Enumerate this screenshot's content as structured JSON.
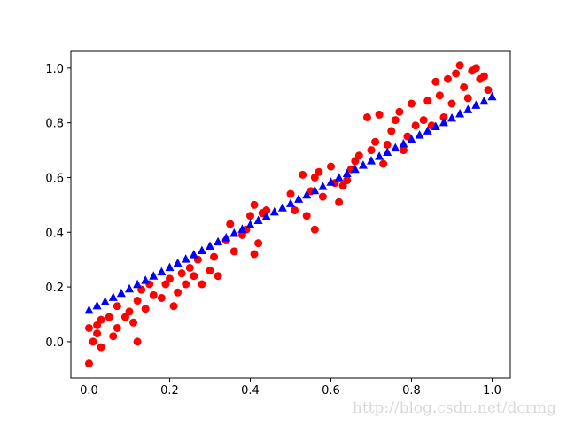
{
  "chart_data": {
    "type": "scatter",
    "xlim": [
      -0.045,
      1.045
    ],
    "ylim": [
      -0.133,
      1.061
    ],
    "xticks": [
      {
        "value": 0,
        "label": "0.0"
      },
      0.2,
      0.4,
      0.6,
      0.8,
      {
        "value": 1,
        "label": "1.0"
      }
    ],
    "yticks": [
      {
        "value": 0,
        "label": "0.0"
      },
      0.2,
      0.4,
      0.6,
      0.8,
      {
        "value": 1,
        "label": "1.0"
      }
    ],
    "watermark": "http://blog.csdn.net/dcrmg",
    "series": [
      {
        "color": "#ff0000",
        "marker": "circle",
        "x": [
          0.0,
          0.0,
          0.01,
          0.02,
          0.02,
          0.03,
          0.03,
          0.05,
          0.06,
          0.07,
          0.07,
          0.09,
          0.1,
          0.11,
          0.12,
          0.12,
          0.13,
          0.14,
          0.15,
          0.16,
          0.18,
          0.19,
          0.2,
          0.21,
          0.22,
          0.23,
          0.24,
          0.25,
          0.26,
          0.27,
          0.28,
          0.3,
          0.31,
          0.32,
          0.34,
          0.35,
          0.36,
          0.38,
          0.39,
          0.4,
          0.41,
          0.41,
          0.42,
          0.43,
          0.44,
          0.5,
          0.51,
          0.53,
          0.54,
          0.55,
          0.56,
          0.57,
          0.58,
          0.6,
          0.61,
          0.62,
          0.63,
          0.64,
          0.65,
          0.67,
          0.69,
          0.7,
          0.71,
          0.72,
          0.73,
          0.74,
          0.75,
          0.77,
          0.78,
          0.79,
          0.8,
          0.81,
          0.83,
          0.84,
          0.85,
          0.86,
          0.87,
          0.88,
          0.89,
          0.9,
          0.91,
          0.92,
          0.93,
          0.94,
          0.95,
          0.96,
          0.97,
          0.98,
          0.99,
          0.56,
          0.66,
          0.76
        ],
        "values": [
          -0.08,
          0.05,
          0.0,
          0.03,
          0.06,
          -0.02,
          0.08,
          0.09,
          0.02,
          0.05,
          0.13,
          0.09,
          0.11,
          0.07,
          0.0,
          0.15,
          0.19,
          0.12,
          0.21,
          0.17,
          0.16,
          0.21,
          0.23,
          0.13,
          0.18,
          0.25,
          0.21,
          0.27,
          0.24,
          0.3,
          0.21,
          0.26,
          0.31,
          0.24,
          0.37,
          0.43,
          0.33,
          0.39,
          0.41,
          0.46,
          0.32,
          0.5,
          0.36,
          0.47,
          0.48,
          0.54,
          0.48,
          0.61,
          0.46,
          0.55,
          0.41,
          0.62,
          0.53,
          0.64,
          0.58,
          0.51,
          0.57,
          0.59,
          0.63,
          0.68,
          0.82,
          0.7,
          0.73,
          0.83,
          0.65,
          0.72,
          0.77,
          0.84,
          0.7,
          0.75,
          0.87,
          0.79,
          0.81,
          0.88,
          0.79,
          0.95,
          0.9,
          0.82,
          0.96,
          0.87,
          0.98,
          1.01,
          0.93,
          0.89,
          0.99,
          1.0,
          0.96,
          0.97,
          0.92,
          0.6,
          0.66,
          0.81
        ]
      },
      {
        "color": "#0000ff",
        "marker": "triangle",
        "x": [
          0.0,
          0.02,
          0.04,
          0.06,
          0.08,
          0.1,
          0.12,
          0.14,
          0.16,
          0.18,
          0.2,
          0.22,
          0.24,
          0.26,
          0.28,
          0.3,
          0.32,
          0.34,
          0.36,
          0.38,
          0.4,
          0.42,
          0.44,
          0.46,
          0.48,
          0.5,
          0.52,
          0.54,
          0.56,
          0.58,
          0.6,
          0.62,
          0.64,
          0.66,
          0.68,
          0.7,
          0.72,
          0.74,
          0.76,
          0.78,
          0.8,
          0.82,
          0.84,
          0.86,
          0.88,
          0.9,
          0.92,
          0.94,
          0.96,
          0.98,
          1.0
        ],
        "values": [
          0.115,
          0.131,
          0.146,
          0.162,
          0.177,
          0.193,
          0.209,
          0.224,
          0.24,
          0.255,
          0.271,
          0.287,
          0.302,
          0.318,
          0.333,
          0.349,
          0.365,
          0.38,
          0.396,
          0.411,
          0.427,
          0.443,
          0.458,
          0.474,
          0.489,
          0.505,
          0.521,
          0.536,
          0.552,
          0.567,
          0.583,
          0.599,
          0.614,
          0.63,
          0.645,
          0.661,
          0.677,
          0.692,
          0.708,
          0.723,
          0.739,
          0.755,
          0.77,
          0.786,
          0.801,
          0.817,
          0.833,
          0.848,
          0.864,
          0.879,
          0.895
        ]
      }
    ]
  }
}
